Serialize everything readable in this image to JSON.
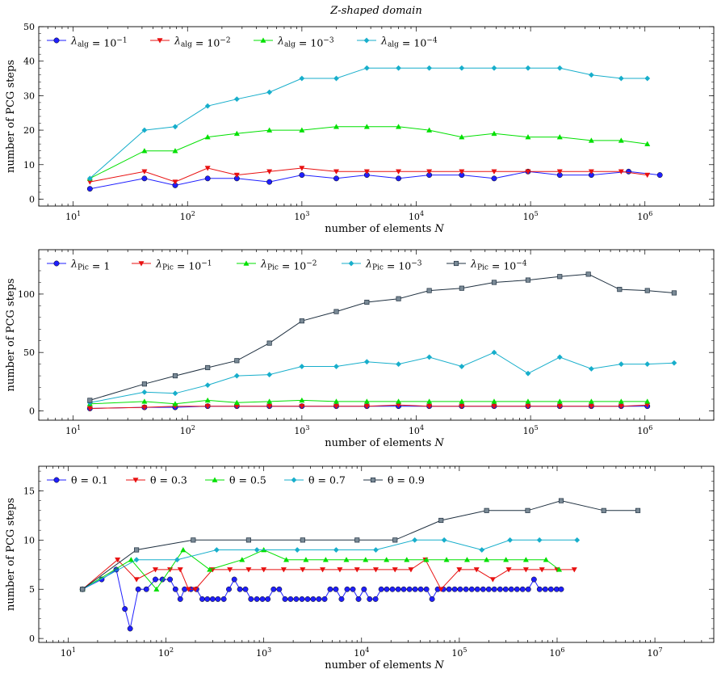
{
  "figure_title": "Z-shaped domain",
  "chart_data": [
    {
      "type": "line",
      "xscale": "log",
      "xlim": [
        5,
        4000000
      ],
      "ylim": [
        -2,
        50
      ],
      "yticks": [
        0,
        10,
        20,
        30,
        40,
        50
      ],
      "xlabel": "number of elements N",
      "ylabel": "number of PCG steps",
      "legend_position": "top-left",
      "grid": false,
      "series": [
        {
          "name": "λalg = 10^-1",
          "color": "#1f1fff",
          "marker": "circle",
          "x": [
            14,
            42,
            78,
            150,
            270,
            520,
            1000,
            2000,
            3700,
            7000,
            13000,
            25000,
            48000,
            95000,
            180000,
            340000,
            720000,
            1350000
          ],
          "y": [
            3,
            6,
            4,
            6,
            6,
            5,
            7,
            6,
            7,
            6,
            7,
            7,
            6,
            8,
            7,
            7,
            8,
            7
          ]
        },
        {
          "name": "λalg = 10^-2",
          "color": "#e81010",
          "marker": "triangle-down",
          "x": [
            14,
            42,
            78,
            150,
            270,
            520,
            1000,
            2000,
            3700,
            7000,
            13000,
            25000,
            48000,
            95000,
            180000,
            340000,
            620000,
            1050000
          ],
          "y": [
            5,
            8,
            5,
            9,
            7,
            8,
            9,
            8,
            8,
            8,
            8,
            8,
            8,
            8,
            8,
            8,
            8,
            7
          ]
        },
        {
          "name": "λalg = 10^-3",
          "color": "#00e000",
          "marker": "triangle-up",
          "x": [
            14,
            42,
            78,
            150,
            270,
            520,
            1000,
            2000,
            3700,
            7000,
            13000,
            25000,
            48000,
            95000,
            180000,
            340000,
            620000,
            1050000
          ],
          "y": [
            6,
            14,
            14,
            18,
            19,
            20,
            20,
            21,
            21,
            21,
            20,
            18,
            19,
            18,
            18,
            17,
            17,
            16
          ]
        },
        {
          "name": "λalg = 10^-4",
          "color": "#17aecb",
          "marker": "diamond",
          "x": [
            14,
            42,
            78,
            150,
            270,
            520,
            1000,
            2000,
            3700,
            7000,
            13000,
            25000,
            48000,
            95000,
            180000,
            340000,
            620000,
            1050000
          ],
          "y": [
            6,
            20,
            21,
            27,
            29,
            31,
            35,
            35,
            38,
            38,
            38,
            38,
            38,
            38,
            38,
            36,
            35,
            35
          ]
        }
      ]
    },
    {
      "type": "line",
      "xscale": "log",
      "xlim": [
        5,
        4000000
      ],
      "ylim": [
        -8,
        138
      ],
      "yticks": [
        0,
        50,
        100
      ],
      "xlabel": "number of elements N",
      "ylabel": "number of PCG steps",
      "legend_position": "top-left",
      "grid": false,
      "series": [
        {
          "name": "λPic = 1",
          "color": "#1f1fff",
          "marker": "circle",
          "x": [
            14,
            42,
            78,
            150,
            270,
            520,
            1000,
            2000,
            3700,
            7000,
            13000,
            25000,
            48000,
            95000,
            180000,
            340000,
            620000,
            1050000
          ],
          "y": [
            2,
            3,
            3,
            4,
            4,
            4,
            4,
            4,
            4,
            4,
            4,
            4,
            4,
            4,
            4,
            4,
            4,
            4
          ]
        },
        {
          "name": "λPic = 10^-1",
          "color": "#e81010",
          "marker": "triangle-down",
          "x": [
            14,
            42,
            78,
            150,
            270,
            520,
            1000,
            2000,
            3700,
            7000,
            13000,
            25000,
            48000,
            95000,
            180000,
            340000,
            620000,
            1050000
          ],
          "y": [
            2,
            3,
            4,
            4,
            4,
            4,
            4,
            4,
            4,
            5,
            4,
            4,
            4,
            4,
            4,
            4,
            4,
            5
          ]
        },
        {
          "name": "λPic = 10^-2",
          "color": "#00e000",
          "marker": "triangle-up",
          "x": [
            14,
            42,
            78,
            150,
            270,
            520,
            1000,
            2000,
            3700,
            7000,
            13000,
            25000,
            48000,
            95000,
            180000,
            340000,
            620000,
            1050000
          ],
          "y": [
            6,
            8,
            6,
            9,
            7,
            8,
            9,
            8,
            8,
            8,
            8,
            8,
            8,
            8,
            8,
            8,
            8,
            8
          ]
        },
        {
          "name": "λPic = 10^-3",
          "color": "#17aecb",
          "marker": "diamond",
          "x": [
            14,
            42,
            78,
            150,
            270,
            520,
            1000,
            2000,
            3700,
            7000,
            13000,
            25000,
            48000,
            95000,
            180000,
            340000,
            620000,
            1050000,
            1800000
          ],
          "y": [
            7,
            16,
            15,
            22,
            30,
            31,
            38,
            38,
            42,
            40,
            46,
            38,
            50,
            32,
            46,
            36,
            40,
            40,
            41
          ]
        },
        {
          "name": "λPic = 10^-4",
          "color": "#1f3040",
          "marker": "square",
          "x": [
            14,
            42,
            78,
            150,
            270,
            520,
            1000,
            2000,
            3700,
            7000,
            13000,
            25000,
            48000,
            95000,
            180000,
            320000,
            600000,
            1050000,
            1800000
          ],
          "y": [
            9,
            23,
            30,
            37,
            43,
            58,
            77,
            85,
            93,
            96,
            103,
            105,
            110,
            112,
            115,
            117,
            104,
            103,
            101
          ]
        }
      ]
    },
    {
      "type": "line",
      "xscale": "log",
      "xlim": [
        5,
        40000000
      ],
      "ylim": [
        -0.4,
        17.5
      ],
      "yticks": [
        0,
        5,
        10,
        15
      ],
      "xlabel": "number of elements N",
      "ylabel": "number of PCG steps",
      "legend_position": "top-left",
      "grid": false,
      "series": [
        {
          "name": "θ = 0.1",
          "color": "#1f1fff",
          "marker": "circle",
          "x": [
            14,
            22,
            31,
            38,
            43,
            52,
            63,
            78,
            92,
            110,
            125,
            140,
            155,
            180,
            205,
            235,
            265,
            300,
            340,
            390,
            440,
            500,
            570,
            650,
            740,
            850,
            970,
            1100,
            1260,
            1440,
            1650,
            1880,
            2150,
            2460,
            2810,
            3200,
            3660,
            4190,
            4780,
            5460,
            6240,
            7130,
            8150,
            9310,
            10600,
            12100,
            13900,
            15900,
            18100,
            20700,
            23700,
            27000,
            30900,
            35300,
            40300,
            46100,
            52600,
            60100,
            68700,
            78500,
            89700,
            102000,
            117000,
            134000,
            153000,
            175000,
            200000,
            228000,
            261000,
            298000,
            340000,
            389000,
            444000,
            507000,
            580000,
            662000,
            757000,
            865000,
            988000,
            1100000
          ],
          "y": [
            5,
            6,
            7,
            3,
            1,
            5,
            5,
            6,
            6,
            6,
            5,
            4,
            5,
            5,
            5,
            4,
            4,
            4,
            4,
            4,
            5,
            6,
            5,
            5,
            4,
            4,
            4,
            4,
            5,
            5,
            4,
            4,
            4,
            4,
            4,
            4,
            4,
            4,
            5,
            5,
            4,
            5,
            5,
            4,
            5,
            4,
            4,
            5,
            5,
            5,
            5,
            5,
            5,
            5,
            5,
            5,
            4,
            5,
            5,
            5,
            5,
            5,
            5,
            5,
            5,
            5,
            5,
            5,
            5,
            5,
            5,
            5,
            5,
            5,
            6,
            5,
            5,
            5,
            5,
            5
          ]
        },
        {
          "name": "θ = 0.3",
          "color": "#e81010",
          "marker": "triangle-down",
          "x": [
            14,
            32,
            50,
            78,
            110,
            140,
            170,
            200,
            300,
            450,
            700,
            1000,
            1600,
            2500,
            4000,
            6000,
            9000,
            14000,
            22000,
            32000,
            45000,
            65000,
            100000,
            150000,
            220000,
            320000,
            480000,
            700000,
            1000000,
            1500000
          ],
          "y": [
            5,
            8,
            6,
            7,
            7,
            7,
            5,
            5,
            7,
            7,
            7,
            7,
            7,
            7,
            7,
            7,
            7,
            7,
            7,
            7,
            8,
            5,
            7,
            7,
            6,
            7,
            7,
            7,
            7,
            7
          ]
        },
        {
          "name": "θ = 0.5",
          "color": "#00e000",
          "marker": "triangle-up",
          "x": [
            14,
            44,
            80,
            150,
            280,
            600,
            1000,
            1700,
            2700,
            4300,
            7000,
            11000,
            18000,
            29000,
            46000,
            74000,
            120000,
            190000,
            300000,
            480000,
            770000,
            1050000
          ],
          "y": [
            5,
            8,
            5,
            9,
            7,
            8,
            9,
            8,
            8,
            8,
            8,
            8,
            8,
            8,
            8,
            8,
            8,
            8,
            8,
            8,
            8,
            7
          ]
        },
        {
          "name": "θ = 0.7",
          "color": "#17aecb",
          "marker": "diamond",
          "x": [
            14,
            50,
            130,
            330,
            850,
            2200,
            5500,
            14000,
            35000,
            70000,
            170000,
            330000,
            660000,
            1600000
          ],
          "y": [
            5,
            8,
            8,
            9,
            9,
            9,
            9,
            9,
            10,
            10,
            9,
            10,
            10,
            10
          ]
        },
        {
          "name": "θ = 0.9",
          "color": "#1f3040",
          "marker": "square",
          "x": [
            14,
            50,
            190,
            700,
            2500,
            9000,
            22000,
            65000,
            190000,
            500000,
            1100000,
            3000000,
            6700000
          ],
          "y": [
            5,
            9,
            10,
            10,
            10,
            10,
            10,
            12,
            13,
            13,
            14,
            13,
            13
          ]
        }
      ]
    }
  ]
}
